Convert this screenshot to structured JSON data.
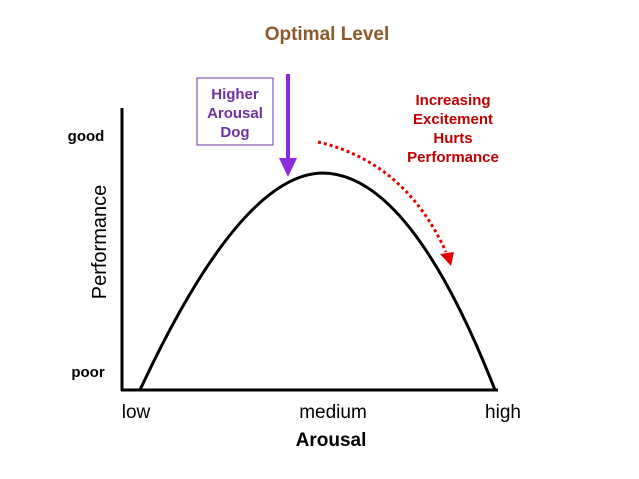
{
  "title": "Optimal Level",
  "callout_box": {
    "lines": [
      "Higher",
      "Arousal",
      "Dog"
    ]
  },
  "annotation": {
    "lines": [
      "Increasing",
      "Excitement",
      "Hurts",
      "Performance"
    ]
  },
  "y_axis": {
    "label": "Performance",
    "top": "good",
    "bottom": "poor"
  },
  "x_axis": {
    "label": "Arousal",
    "ticks": [
      "low",
      "medium",
      "high"
    ]
  }
}
